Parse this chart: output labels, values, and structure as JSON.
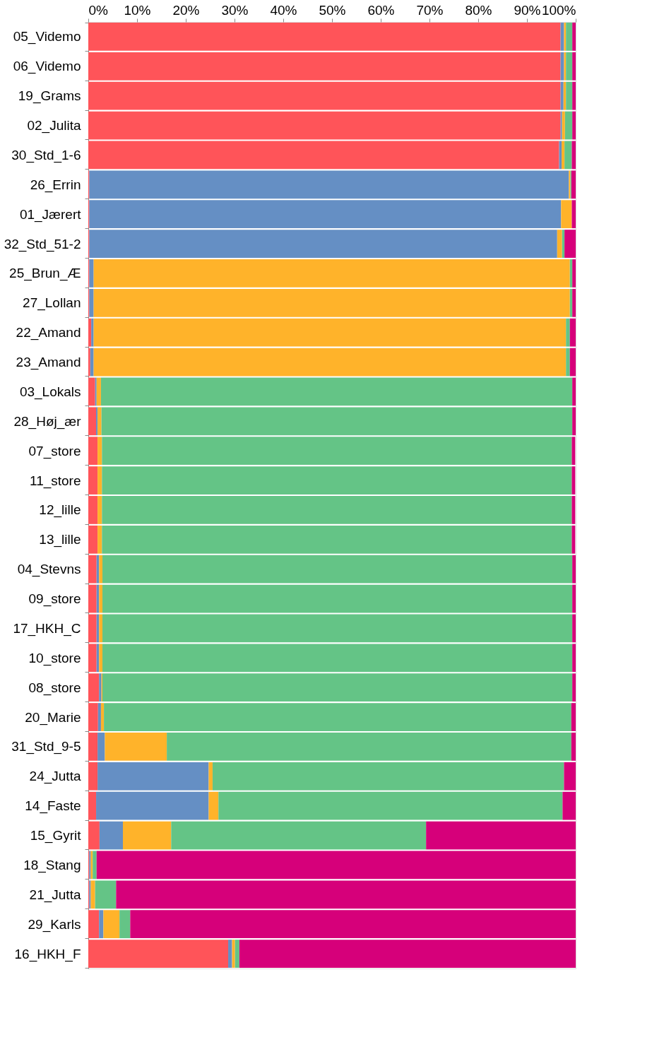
{
  "chart_data": {
    "type": "bar",
    "orientation": "horizontal",
    "stacked": true,
    "categories": [
      "05_Videmo",
      "06_Videmo",
      "19_Grams",
      "02_Julita",
      "30_Std_1-6",
      "26_Errin",
      "01_Jærert",
      "32_Std_51-2",
      "25_Brun_Æ",
      "27_Lollan",
      "22_Amand",
      "23_Amand",
      "03_Lokals",
      "28_Høj_ær",
      "07_store",
      "11_store",
      "12_lille",
      "13_lille",
      "04_Stevns",
      "09_store",
      "17_HKH_C",
      "10_store",
      "08_store",
      "20_Marie",
      "31_Std_9-5",
      "24_Jutta",
      "14_Faste",
      "15_Gyrit",
      "18_Stang",
      "21_Jutta",
      "29_Karls",
      "16_HKH_F"
    ],
    "series": [
      {
        "color": "#ff5459",
        "values": [
          96.9,
          96.9,
          96.9,
          96.9,
          96.6,
          0.2,
          0.2,
          0.2,
          0.2,
          0.2,
          0.6,
          0.4,
          1.4,
          1.6,
          1.9,
          1.9,
          1.9,
          1.9,
          1.7,
          1.7,
          1.7,
          1.7,
          2.2,
          2.0,
          1.9,
          1.9,
          1.6,
          2.3,
          0.2,
          0.2,
          2.2,
          28.7
        ]
      },
      {
        "color": "#658fc4",
        "values": [
          0.7,
          0.7,
          0.6,
          0.3,
          0.5,
          98.4,
          96.8,
          96.0,
          0.9,
          0.9,
          0.5,
          0.7,
          0.3,
          0.3,
          null,
          null,
          null,
          null,
          0.5,
          0.5,
          0.5,
          0.5,
          0.5,
          0.6,
          1.5,
          22.8,
          23.1,
          4.8,
          0.3,
          0.3,
          0.9,
          0.8
        ]
      },
      {
        "color": "#ffb32a",
        "values": [
          0.4,
          0.4,
          0.5,
          0.6,
          0.6,
          0.3,
          2.2,
          1.0,
          97.7,
          97.7,
          96.9,
          96.9,
          0.9,
          0.8,
          0.9,
          0.9,
          0.9,
          0.9,
          0.7,
          0.7,
          0.7,
          0.7,
          0.2,
          0.6,
          12.7,
          0.8,
          2.0,
          9.9,
          0.4,
          0.9,
          3.3,
          0.6
        ]
      },
      {
        "color": "#64c486",
        "values": [
          1.3,
          1.3,
          1.3,
          1.5,
          1.5,
          0.2,
          0.0,
          0.5,
          0.5,
          0.5,
          0.8,
          0.8,
          96.7,
          96.6,
          96.4,
          96.4,
          96.4,
          96.4,
          96.4,
          96.4,
          96.4,
          96.4,
          96.4,
          95.9,
          83.0,
          72.1,
          70.6,
          52.3,
          0.8,
          4.3,
          2.2,
          0.9
        ]
      },
      {
        "color": "#d6007a",
        "values": [
          0.7,
          0.7,
          0.7,
          0.7,
          0.8,
          0.9,
          0.8,
          2.3,
          0.7,
          0.7,
          1.2,
          1.2,
          0.7,
          0.7,
          0.7,
          0.7,
          0.7,
          0.7,
          0.7,
          0.7,
          0.7,
          0.7,
          0.7,
          0.9,
          0.9,
          2.4,
          2.7,
          30.7,
          98.3,
          94.3,
          91.4,
          69.0
        ]
      }
    ],
    "xlim": [
      0,
      100
    ],
    "xticks": [
      {
        "value": 0,
        "label": "0%"
      },
      {
        "value": 10,
        "label": "10%"
      },
      {
        "value": 20,
        "label": "20%"
      },
      {
        "value": 30,
        "label": "30%"
      },
      {
        "value": 40,
        "label": "40%"
      },
      {
        "value": 50,
        "label": "50%"
      },
      {
        "value": 60,
        "label": "60%"
      },
      {
        "value": 70,
        "label": "70%"
      },
      {
        "value": 80,
        "label": "80%"
      },
      {
        "value": 90,
        "label": "90%"
      },
      {
        "value": 100,
        "label": "100%"
      }
    ],
    "grid": false,
    "legend": false
  }
}
